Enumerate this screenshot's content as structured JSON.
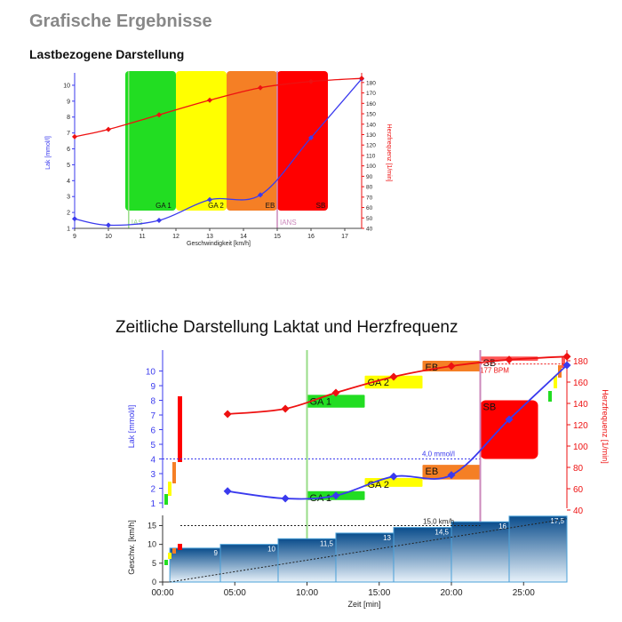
{
  "page": {
    "title": "Grafische Ergebnisse",
    "subtitle1": "Lastbezogene Darstellung",
    "subtitle2": "Zeitliche Darstellung Laktat und Herzfrequenz"
  },
  "colors": {
    "lactate": "#3a3aee",
    "heart_rate": "#ee1111",
    "ga1": "#22dd22",
    "ga2": "#ffff00",
    "eb": "#f57f25",
    "sb": "#ff0000",
    "ias": "#99dd88",
    "ians": "#cc88bb",
    "speed_dark": "#0a4d8c"
  },
  "chart_data": [
    {
      "type": "line",
      "title": "Lastbezogene Darstellung",
      "xlabel": "Geschwindigkeit [km/h]",
      "ylabel": "Lak [mmol/l]",
      "ylabel_right": "Herzfrequenz [1/min]",
      "xlim": [
        9,
        17.5
      ],
      "ylim": [
        1,
        10.5
      ],
      "ylim_right": [
        40,
        185
      ],
      "x_ticks": [
        9,
        10,
        11,
        12,
        13,
        14,
        15,
        16,
        17
      ],
      "y_ticks": [
        1,
        2,
        3,
        4,
        5,
        6,
        7,
        8,
        9,
        10
      ],
      "y_ticks_right": [
        40,
        50,
        60,
        70,
        80,
        90,
        100,
        110,
        120,
        130,
        140,
        150,
        160,
        170,
        180
      ],
      "series": [
        {
          "name": "Lak",
          "axis": "left",
          "x": [
            9,
            10,
            11.5,
            13,
            14.5,
            16,
            17.5
          ],
          "y": [
            1.6,
            1.2,
            1.5,
            2.8,
            3.1,
            6.7,
            10.4
          ]
        },
        {
          "name": "Herzfrequenz",
          "axis": "right",
          "x": [
            9,
            10,
            11.5,
            13,
            14.5,
            16,
            17.5
          ],
          "y": [
            128,
            135,
            149,
            163,
            175,
            181,
            184
          ]
        }
      ],
      "zones": [
        {
          "label": "GA 1",
          "from": 10.5,
          "to": 12.0
        },
        {
          "label": "GA 2",
          "from": 12.0,
          "to": 13.5
        },
        {
          "label": "EB",
          "from": 13.5,
          "to": 15.0
        },
        {
          "label": "SB",
          "from": 15.0,
          "to": 16.5
        }
      ],
      "thresholds": [
        {
          "label": "IAS",
          "x": 10.6
        },
        {
          "label": "IANS",
          "x": 15.0
        }
      ]
    },
    {
      "type": "line",
      "title": "Zeitliche Darstellung Laktat und Herzfrequenz",
      "xlabel": "Zeit [min]",
      "ylabel": "Lak [mmol/l]",
      "ylabel_right": "Herzfrequenz [1/min]",
      "xlim": [
        0,
        28
      ],
      "ylim": [
        1,
        10.7
      ],
      "ylim_right": [
        40,
        185
      ],
      "x_ticks": [
        "00:00",
        "05:00",
        "10:00",
        "15:00",
        "20:00",
        "25:00"
      ],
      "x_tick_values": [
        0,
        5,
        10,
        15,
        20,
        25
      ],
      "y_ticks": [
        1,
        2,
        3,
        4,
        5,
        6,
        7,
        8,
        9,
        10
      ],
      "y_ticks_right": [
        40,
        60,
        80,
        100,
        120,
        140,
        160,
        180
      ],
      "series": [
        {
          "name": "Lak",
          "axis": "left",
          "x": [
            4.5,
            8.5,
            12,
            16,
            20,
            24,
            28
          ],
          "y": [
            1.8,
            1.3,
            1.5,
            2.8,
            2.9,
            6.7,
            10.4
          ]
        },
        {
          "name": "Herzfrequenz",
          "axis": "right",
          "x": [
            4.5,
            8.5,
            12,
            16,
            20,
            24,
            28
          ],
          "y": [
            130,
            135,
            150,
            165,
            175,
            181,
            184
          ]
        }
      ],
      "lactate_zones": [
        {
          "label": "GA 1",
          "from": 10,
          "to": 14,
          "y_from": 1.2,
          "y_to": 1.8
        },
        {
          "label": "GA 2",
          "from": 14,
          "to": 18,
          "y_from": 2.1,
          "y_to": 2.7
        },
        {
          "label": "EB",
          "from": 18,
          "to": 22,
          "y_from": 2.6,
          "y_to": 3.6
        },
        {
          "label": "SB",
          "from": 22,
          "to": 26,
          "y_from": 4.0,
          "y_to": 8.0
        }
      ],
      "hr_zones": [
        {
          "label": "GA 1",
          "from": 10,
          "to": 14,
          "y_from": 136,
          "y_to": 148
        },
        {
          "label": "GA 2",
          "from": 14,
          "to": 18,
          "y_from": 154,
          "y_to": 166
        },
        {
          "label": "EB",
          "from": 18,
          "to": 22,
          "y_from": 170,
          "y_to": 180
        },
        {
          "label": "SB",
          "from": 22,
          "to": 26,
          "y_from": 180,
          "y_to": 184
        }
      ],
      "lactate_threshold": {
        "label": "4,0 mmol/l",
        "y": 4.0
      },
      "hr_threshold": {
        "label": "177 BPM",
        "y": 177
      },
      "thresholds": [
        {
          "label": "IAS",
          "x": 10
        },
        {
          "label": "IANS",
          "x": 22
        }
      ],
      "speed": {
        "ylabel": "Geschw. [km/h]",
        "ylim": [
          0,
          17
        ],
        "y_ticks": [
          0,
          5,
          10,
          15
        ],
        "stages": [
          {
            "from": 0.5,
            "to": 4,
            "value": 9,
            "label": "9"
          },
          {
            "from": 4,
            "to": 8,
            "value": 10,
            "label": "10"
          },
          {
            "from": 8,
            "to": 12,
            "value": 11.5,
            "label": "11,5"
          },
          {
            "from": 12,
            "to": 16,
            "value": 13,
            "label": "13"
          },
          {
            "from": 16,
            "to": 20,
            "value": 14.5,
            "label": "14,5"
          },
          {
            "from": 20,
            "to": 24,
            "value": 16,
            "label": "16"
          },
          {
            "from": 24,
            "to": 28,
            "value": 17.5,
            "label": "17,5"
          }
        ],
        "threshold": {
          "label": "15,0 km/h",
          "y": 15.0
        }
      }
    }
  ]
}
